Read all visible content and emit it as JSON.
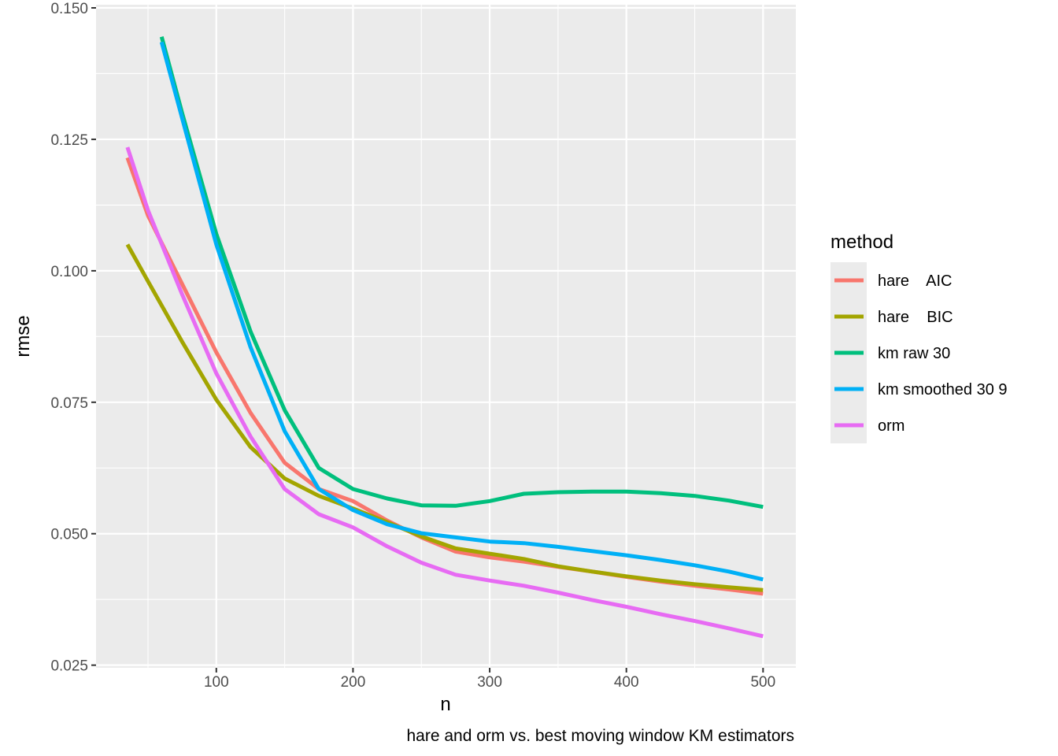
{
  "chart_data": {
    "type": "line",
    "xlabel": "n",
    "ylabel": "rmse",
    "caption": "hare and orm vs. best moving window KM estimators",
    "xlim": [
      12,
      524
    ],
    "ylim": [
      0.0245,
      0.1506
    ],
    "x_ticks": [
      100,
      200,
      300,
      400,
      500
    ],
    "x_tick_labels": [
      "100",
      "200",
      "300",
      "400",
      "500"
    ],
    "y_ticks": [
      0.025,
      0.05,
      0.075,
      0.1,
      0.125,
      0.15
    ],
    "y_tick_labels": [
      "0.025",
      "0.050",
      "0.075",
      "0.100",
      "0.125",
      "0.150"
    ],
    "grid": true,
    "legend": {
      "title": "method",
      "position": "right"
    },
    "series": [
      {
        "name": "hare    AIC",
        "color": "#F8766D",
        "points": [
          [
            35,
            0.1215
          ],
          [
            50,
            0.1105
          ],
          [
            75,
            0.0975
          ],
          [
            100,
            0.0845
          ],
          [
            125,
            0.073
          ],
          [
            150,
            0.0635
          ],
          [
            175,
            0.0585
          ],
          [
            200,
            0.0562
          ],
          [
            225,
            0.0525
          ],
          [
            250,
            0.0493
          ],
          [
            275,
            0.0466
          ],
          [
            300,
            0.0455
          ],
          [
            325,
            0.0447
          ],
          [
            350,
            0.0437
          ],
          [
            375,
            0.0428
          ],
          [
            400,
            0.0418
          ],
          [
            425,
            0.0409
          ],
          [
            450,
            0.0401
          ],
          [
            475,
            0.0394
          ],
          [
            500,
            0.0386
          ]
        ]
      },
      {
        "name": "hare    BIC",
        "color": "#A3A500",
        "points": [
          [
            35,
            0.105
          ],
          [
            50,
            0.098
          ],
          [
            75,
            0.0865
          ],
          [
            100,
            0.0755
          ],
          [
            125,
            0.0665
          ],
          [
            150,
            0.0605
          ],
          [
            175,
            0.0572
          ],
          [
            200,
            0.0548
          ],
          [
            225,
            0.0522
          ],
          [
            250,
            0.0495
          ],
          [
            275,
            0.0472
          ],
          [
            300,
            0.0462
          ],
          [
            325,
            0.0452
          ],
          [
            350,
            0.0438
          ],
          [
            375,
            0.0428
          ],
          [
            400,
            0.0419
          ],
          [
            425,
            0.0411
          ],
          [
            450,
            0.0404
          ],
          [
            475,
            0.0398
          ],
          [
            500,
            0.0393
          ]
        ]
      },
      {
        "name": "km raw 30",
        "color": "#00BF7D",
        "points": [
          [
            60,
            0.1445
          ],
          [
            75,
            0.13
          ],
          [
            100,
            0.107
          ],
          [
            125,
            0.0885
          ],
          [
            150,
            0.0735
          ],
          [
            175,
            0.0625
          ],
          [
            200,
            0.0585
          ],
          [
            225,
            0.0567
          ],
          [
            250,
            0.0554
          ],
          [
            275,
            0.0553
          ],
          [
            300,
            0.0562
          ],
          [
            325,
            0.0576
          ],
          [
            350,
            0.0579
          ],
          [
            375,
            0.058
          ],
          [
            400,
            0.058
          ],
          [
            425,
            0.0577
          ],
          [
            450,
            0.0572
          ],
          [
            475,
            0.0563
          ],
          [
            500,
            0.0551
          ]
        ]
      },
      {
        "name": "km smoothed 30 9",
        "color": "#00B0F6",
        "points": [
          [
            60,
            0.1435
          ],
          [
            75,
            0.129
          ],
          [
            100,
            0.105
          ],
          [
            125,
            0.0855
          ],
          [
            150,
            0.0695
          ],
          [
            175,
            0.0585
          ],
          [
            200,
            0.0545
          ],
          [
            225,
            0.0518
          ],
          [
            250,
            0.0501
          ],
          [
            275,
            0.0493
          ],
          [
            300,
            0.0485
          ],
          [
            325,
            0.0482
          ],
          [
            350,
            0.0475
          ],
          [
            375,
            0.0467
          ],
          [
            400,
            0.0459
          ],
          [
            425,
            0.045
          ],
          [
            450,
            0.044
          ],
          [
            475,
            0.0428
          ],
          [
            500,
            0.0413
          ]
        ]
      },
      {
        "name": "orm",
        "color": "#E76BF3",
        "points": [
          [
            35,
            0.1235
          ],
          [
            50,
            0.1115
          ],
          [
            75,
            0.0955
          ],
          [
            100,
            0.0805
          ],
          [
            125,
            0.0685
          ],
          [
            150,
            0.0585
          ],
          [
            175,
            0.0537
          ],
          [
            200,
            0.0512
          ],
          [
            225,
            0.0476
          ],
          [
            250,
            0.0445
          ],
          [
            275,
            0.0422
          ],
          [
            300,
            0.0411
          ],
          [
            325,
            0.0401
          ],
          [
            350,
            0.0388
          ],
          [
            375,
            0.0374
          ],
          [
            400,
            0.0361
          ],
          [
            425,
            0.0347
          ],
          [
            450,
            0.0334
          ],
          [
            475,
            0.032
          ],
          [
            500,
            0.0305
          ]
        ]
      }
    ]
  }
}
